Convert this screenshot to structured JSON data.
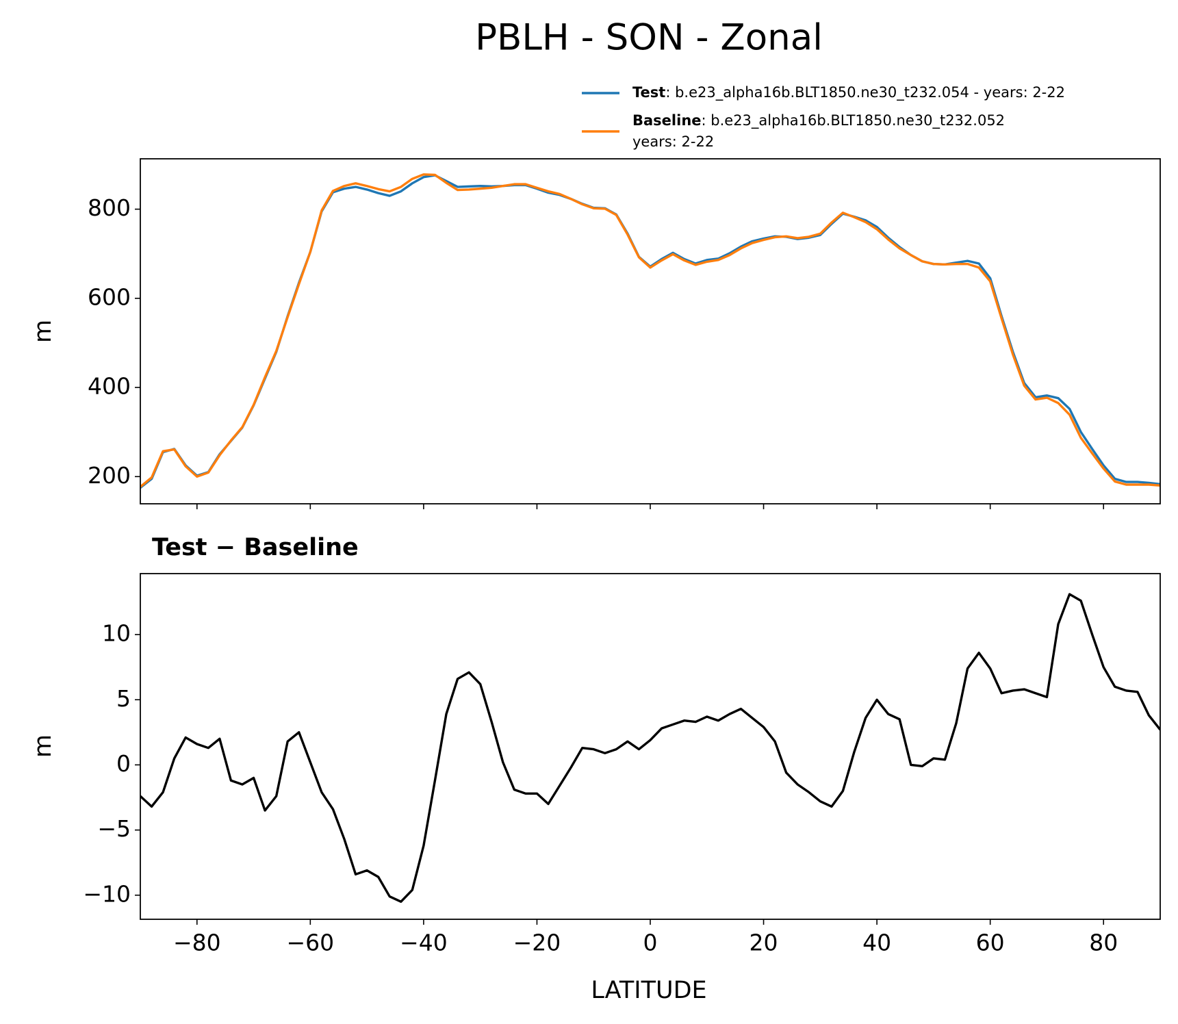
{
  "title": "PBLH - SON - Zonal",
  "chart_data": [
    {
      "type": "line",
      "ylabel": "m",
      "ylim": [
        139,
        913
      ],
      "yticks": [
        200,
        400,
        600,
        800
      ],
      "xlim": [
        -90,
        90
      ],
      "x": [
        -90,
        -88,
        -86,
        -84,
        -82,
        -80,
        -78,
        -76,
        -74,
        -72,
        -70,
        -68,
        -66,
        -64,
        -62,
        -60,
        -58,
        -56,
        -54,
        -52,
        -50,
        -48,
        -46,
        -44,
        -42,
        -40,
        -38,
        -36,
        -34,
        -32,
        -30,
        -28,
        -26,
        -24,
        -22,
        -20,
        -18,
        -16,
        -14,
        -12,
        -10,
        -8,
        -6,
        -4,
        -2,
        0,
        2,
        4,
        6,
        8,
        10,
        12,
        14,
        16,
        18,
        20,
        22,
        24,
        26,
        28,
        30,
        32,
        34,
        36,
        38,
        40,
        42,
        44,
        46,
        48,
        50,
        52,
        54,
        56,
        58,
        60,
        62,
        64,
        66,
        68,
        70,
        72,
        74,
        76,
        78,
        80,
        82,
        84,
        86,
        88,
        90
      ],
      "series": [
        {
          "name": "Test",
          "description": [
            ": b.e23_alpha16b.BLT1850.ne30_t232.054 - years: 2-22"
          ],
          "color": "#1f77b4",
          "values": [
            175,
            195,
            255,
            262,
            225,
            202,
            210,
            250,
            280,
            310,
            360,
            420,
            480,
            560,
            635,
            704,
            795,
            838,
            846,
            850,
            844,
            836,
            830,
            840,
            858,
            872,
            876,
            863,
            850,
            851,
            852,
            851,
            852,
            854,
            854,
            846,
            837,
            832,
            823,
            812,
            803,
            802,
            788,
            745,
            693,
            671,
            688,
            702,
            688,
            678,
            686,
            689,
            701,
            716,
            728,
            734,
            739,
            738,
            733,
            736,
            742,
            767,
            790,
            783,
            775,
            760,
            736,
            715,
            697,
            683,
            677,
            676,
            680,
            684,
            678,
            645,
            560,
            480,
            410,
            378,
            382,
            376,
            352,
            300,
            262,
            225,
            195,
            188,
            188,
            186,
            183
          ]
        },
        {
          "name": "Baseline",
          "description": [
            ": b.e23_alpha16b.BLT1850.ne30_t232.052",
            "years: 2-22"
          ],
          "color": "#ff7f0e",
          "values": [
            177,
            198,
            257,
            261,
            223,
            200,
            209,
            248,
            281,
            311,
            361,
            423,
            482,
            558,
            632,
            704,
            797,
            841,
            852,
            858,
            852,
            845,
            840,
            850,
            868,
            878,
            877,
            859,
            843,
            844,
            846,
            848,
            852,
            856,
            856,
            848,
            840,
            834,
            823,
            811,
            802,
            801,
            787,
            743,
            692,
            669,
            685,
            699,
            685,
            675,
            682,
            686,
            697,
            712,
            724,
            731,
            737,
            739,
            735,
            738,
            745,
            770,
            792,
            782,
            771,
            755,
            732,
            712,
            697,
            683,
            677,
            676,
            677,
            677,
            669,
            638,
            555,
            474,
            404,
            373,
            377,
            365,
            339,
            287,
            252,
            218,
            189,
            182,
            182,
            182,
            180
          ]
        }
      ]
    },
    {
      "type": "line",
      "title": "Test − Baseline",
      "ylabel": "m",
      "xlabel": "LATITUDE",
      "ylim": [
        -11.85,
        14.68
      ],
      "yticks": [
        {
          "value": -10,
          "label": "−10"
        },
        {
          "value": -5,
          "label": "−5"
        },
        0,
        5,
        10
      ],
      "xlim": [
        -90,
        90
      ],
      "xticks": [
        {
          "value": -80,
          "label": "−80"
        },
        {
          "value": -60,
          "label": "−60"
        },
        {
          "value": -40,
          "label": "−40"
        },
        {
          "value": -20,
          "label": "−20"
        },
        0,
        20,
        40,
        60,
        80
      ],
      "x": [
        -90,
        -88,
        -86,
        -84,
        -82,
        -80,
        -78,
        -76,
        -74,
        -72,
        -70,
        -68,
        -66,
        -64,
        -62,
        -60,
        -58,
        -56,
        -54,
        -52,
        -50,
        -48,
        -46,
        -44,
        -42,
        -40,
        -38,
        -36,
        -34,
        -32,
        -30,
        -28,
        -26,
        -24,
        -22,
        -20,
        -18,
        -16,
        -14,
        -12,
        -10,
        -8,
        -6,
        -4,
        -2,
        0,
        2,
        4,
        6,
        8,
        10,
        12,
        14,
        16,
        18,
        20,
        22,
        24,
        26,
        28,
        30,
        32,
        34,
        36,
        38,
        40,
        42,
        44,
        46,
        48,
        50,
        52,
        54,
        56,
        58,
        60,
        62,
        64,
        66,
        68,
        70,
        72,
        74,
        76,
        78,
        80,
        82,
        84,
        86,
        88,
        90
      ],
      "color": "#000000",
      "values": [
        -2.4,
        -3.2,
        -2.1,
        0.5,
        2.1,
        1.6,
        1.3,
        2.0,
        -1.2,
        -1.5,
        -1.0,
        -3.5,
        -2.4,
        1.8,
        2.5,
        0.2,
        -2.1,
        -3.4,
        -5.7,
        -8.4,
        -8.1,
        -8.6,
        -10.1,
        -10.5,
        -9.6,
        -6.2,
        -1.2,
        3.9,
        6.6,
        7.1,
        6.2,
        3.3,
        0.2,
        -1.9,
        -2.2,
        -2.2,
        -3.0,
        -1.6,
        -0.2,
        1.3,
        1.2,
        0.9,
        1.2,
        1.8,
        1.2,
        1.9,
        2.8,
        3.1,
        3.4,
        3.3,
        3.7,
        3.4,
        3.9,
        4.3,
        3.6,
        2.9,
        1.8,
        -0.6,
        -1.5,
        -2.1,
        -2.8,
        -3.2,
        -2.0,
        1.0,
        3.6,
        5.0,
        3.9,
        3.5,
        0.0,
        -0.1,
        0.5,
        0.4,
        3.2,
        7.4,
        8.6,
        7.4,
        5.5,
        5.7,
        5.8,
        5.5,
        5.2,
        10.8,
        13.1,
        12.6,
        10.0,
        7.5,
        6.0,
        5.7,
        5.6,
        3.8,
        2.7
      ]
    }
  ]
}
